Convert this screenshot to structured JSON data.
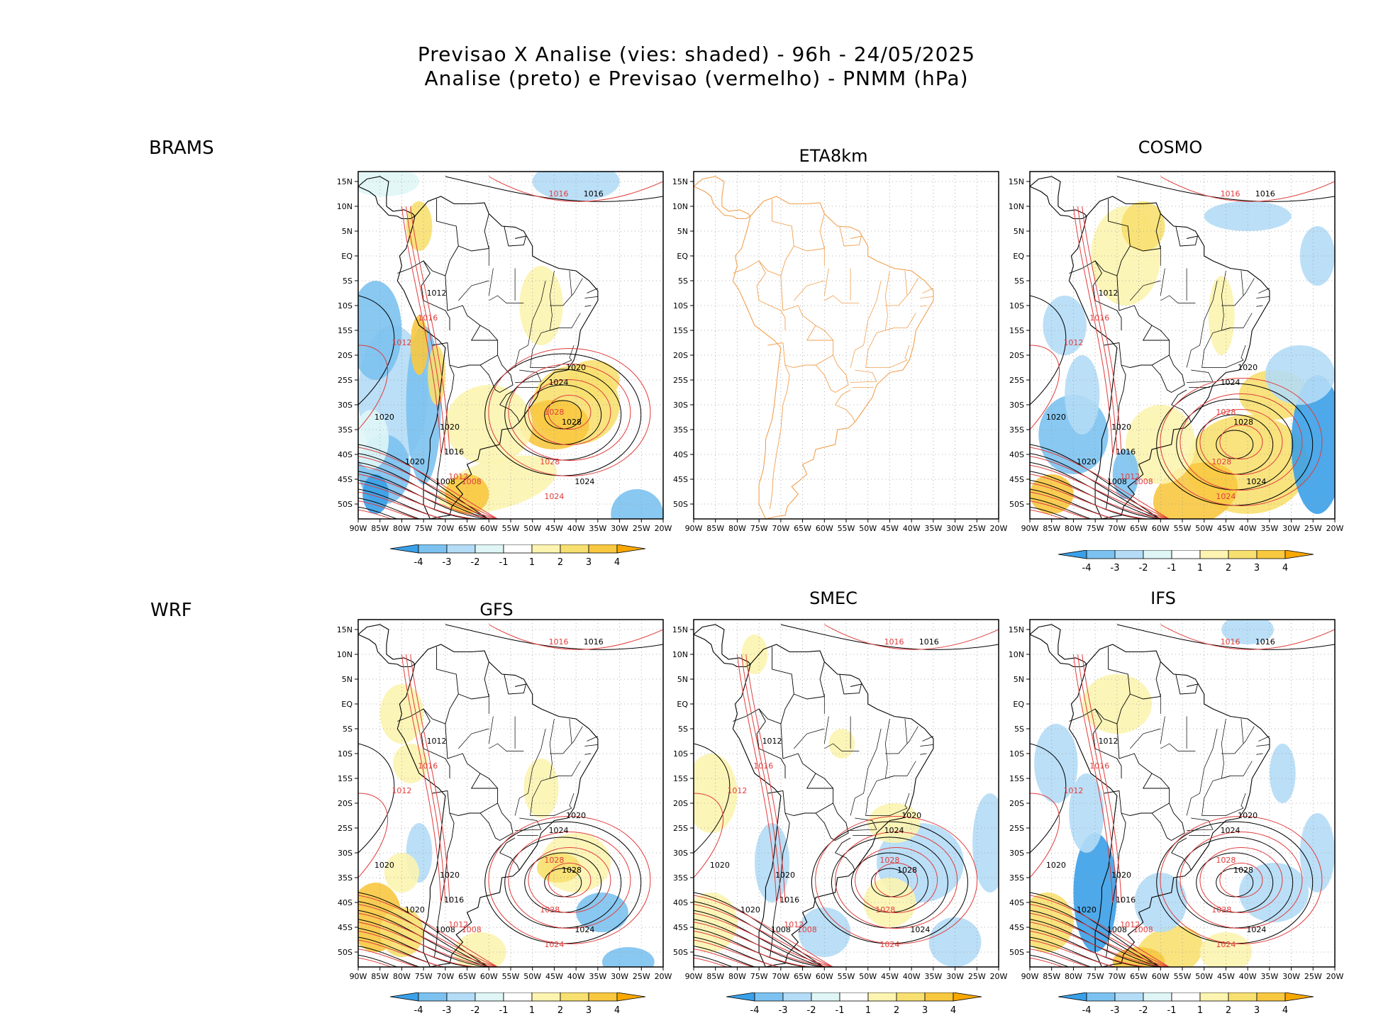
{
  "title": {
    "line1": "Previsao X Analise (vies: shaded) - 96h - 24/05/2025",
    "line2": "Analise (preto) e Previsao (vermelho) - PNMM (hPa)"
  },
  "row_labels": {
    "row1": "BRAMS",
    "row2": "WRF"
  },
  "colors": {
    "analysis": "#000000",
    "forecast": "#e03c3c",
    "coast_eta": "#f0a050",
    "bias_scale": [
      "#3aa0e8",
      "#7cc2f0",
      "#b4dcf6",
      "#e0f6f6",
      "#ffffff",
      "#fcf4b0",
      "#f8e070",
      "#f8c840",
      "#f8a800"
    ]
  },
  "panels": [
    {
      "id": "brams",
      "title": "",
      "label_1016": "1016",
      "label_1024": "1024",
      "label_1028": "1028",
      "label_1020": "1020",
      "label_1012": "1012",
      "label_1008": "1008"
    },
    {
      "id": "eta8km",
      "title": "ETA8km"
    },
    {
      "id": "cosmo",
      "title": "COSMO",
      "label_1016": "1016",
      "label_1024": "1024",
      "label_1028": "1028",
      "label_1020": "1020",
      "label_1012": "1012",
      "label_1008": "1008"
    },
    {
      "id": "gfs",
      "title": "GFS",
      "label_1016": "1016",
      "label_1024": "1024",
      "label_1028": "1028",
      "label_1020": "1020",
      "label_1012": "1012",
      "label_1008": "1008"
    },
    {
      "id": "smec",
      "title": "SMEC",
      "label_1016": "1016",
      "label_1024": "1024",
      "label_1028": "1028",
      "label_1020": "1020",
      "label_1012": "1012",
      "label_1008": "1008"
    },
    {
      "id": "ifs",
      "title": "IFS",
      "label_1016": "1016",
      "label_1024": "1024",
      "label_1028": "1028",
      "label_1020": "1020",
      "label_1012": "1012",
      "label_1008": "1008"
    }
  ],
  "chart_data": {
    "type": "heatmap",
    "title": "Previsao X Analise (vies: shaded) - 96h - 24/05/2025",
    "subtitle": "Analise (preto) e Previsao (vermelho) - PNMM (hPa)",
    "x_ticks": [
      "90W",
      "85W",
      "80W",
      "75W",
      "70W",
      "65W",
      "60W",
      "55W",
      "50W",
      "45W",
      "40W",
      "35W",
      "30W",
      "25W",
      "20W"
    ],
    "y_ticks": [
      "15N",
      "10N",
      "5N",
      "EQ",
      "5S",
      "10S",
      "15S",
      "20S",
      "25S",
      "30S",
      "35S",
      "40S",
      "45S",
      "50S"
    ],
    "xlim": [
      -90,
      -20
    ],
    "ylim": [
      -53,
      17
    ],
    "colorbar_labels": [
      "-4",
      "-3",
      "-2",
      "-1",
      "1",
      "2",
      "3",
      "4"
    ],
    "pressure_contours_hPa": [
      1004,
      1008,
      1012,
      1016,
      1020,
      1024,
      1028
    ]
  }
}
